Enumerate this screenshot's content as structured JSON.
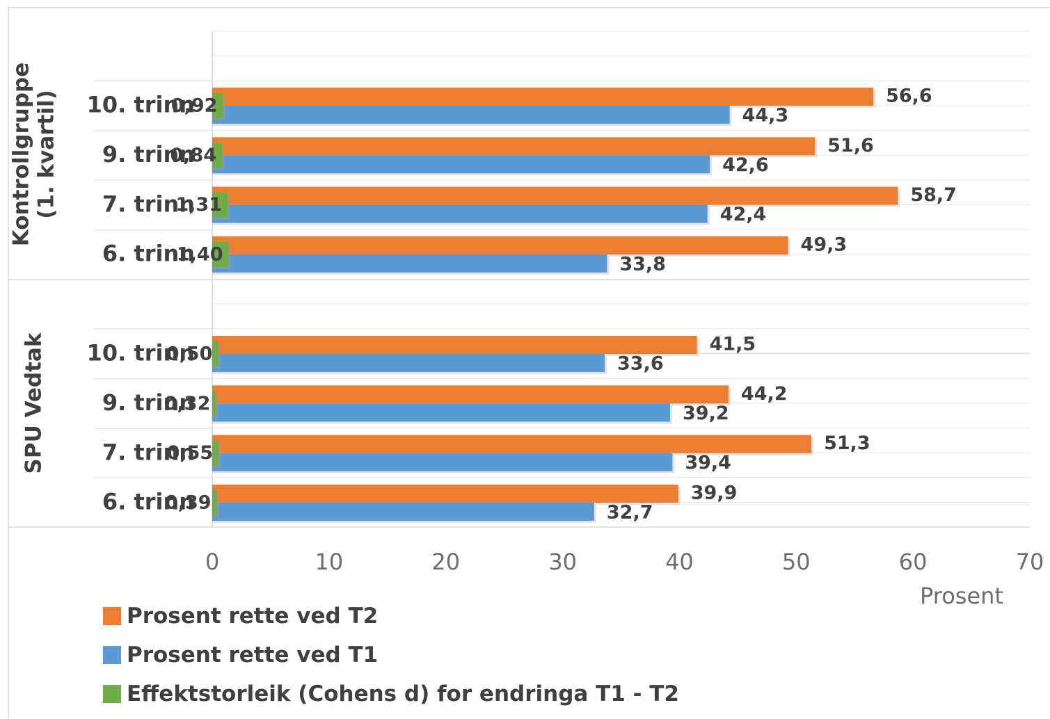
{
  "chart_data": {
    "type": "bar",
    "orientation": "horizontal",
    "xlim": [
      0,
      70
    ],
    "xticks": [
      "0",
      "10",
      "20",
      "30",
      "40",
      "50",
      "60",
      "70"
    ],
    "xticks_values": [
      0,
      10,
      20,
      30,
      40,
      50,
      60,
      70
    ],
    "xlabel": "Prosent",
    "grid": true,
    "legend_position": "bottom-left",
    "groups": [
      {
        "name": "Kontrollgruppe\n(1. kvartil)",
        "name_lines": [
          "Kontrollgruppe",
          "(1. kvartil)"
        ],
        "categories": [
          "10. trinn",
          "9. trinn",
          "7. trinn",
          "6. trinn"
        ],
        "series": [
          {
            "name": "Prosent rette ved T2",
            "values": [
              56.6,
              51.6,
              58.7,
              49.3
            ],
            "labels": [
              "56,6",
              "51,6",
              "58,7",
              "49,3"
            ]
          },
          {
            "name": "Prosent rette ved T1",
            "values": [
              44.3,
              42.6,
              42.4,
              33.8
            ],
            "labels": [
              "44,3",
              "42,6",
              "42,4",
              "33,8"
            ]
          },
          {
            "name": "Effektstorleik (Cohens d) for endringa T1 - T2",
            "values": [
              0.92,
              0.84,
              1.31,
              1.4
            ],
            "labels": [
              "0,92",
              "0,84",
              "1,31",
              "1,40"
            ]
          }
        ]
      },
      {
        "name": "SPU Vedtak",
        "name_lines": [
          "SPU Vedtak"
        ],
        "categories": [
          "10. trinn",
          "9. trinn",
          "7. trinn",
          "6. trinn"
        ],
        "series": [
          {
            "name": "Prosent rette ved T2",
            "values": [
              41.5,
              44.2,
              51.3,
              39.9
            ],
            "labels": [
              "41,5",
              "44,2",
              "51,3",
              "39,9"
            ]
          },
          {
            "name": "Prosent rette ved T1",
            "values": [
              33.6,
              39.2,
              39.4,
              32.7
            ],
            "labels": [
              "33,6",
              "39,2",
              "39,4",
              "32,7"
            ]
          },
          {
            "name": "Effektstorleik (Cohens d) for endringa T1 - T2",
            "values": [
              0.5,
              0.32,
              0.55,
              0.39
            ],
            "labels": [
              "0,50",
              "0,32",
              "0,55",
              "0,39"
            ]
          }
        ]
      }
    ],
    "legend": [
      {
        "label": "Prosent rette ved T2",
        "color": "#ed7d31"
      },
      {
        "label": "Prosent rette ved T1",
        "color": "#5b9bd5"
      },
      {
        "label": "Effektstorleik (Cohens d) for endringa T1 - T2",
        "color": "#70ad47"
      }
    ],
    "colors": {
      "t2": "#ed7d31",
      "t1": "#5b9bd5",
      "effect": "#70ad47",
      "grid": "#e3e3e3",
      "text": "#404040",
      "axis_text": "#6d6d6d"
    }
  }
}
